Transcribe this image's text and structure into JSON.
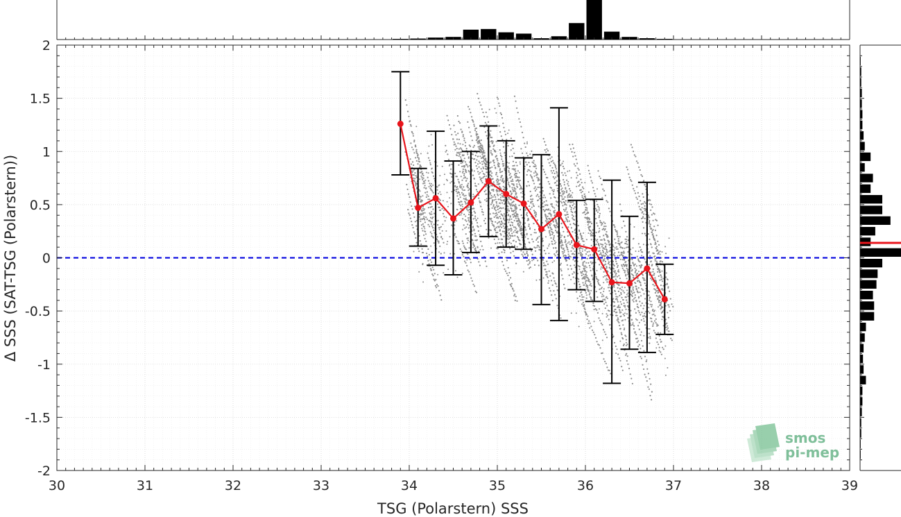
{
  "chart_data": {
    "type": "scatter",
    "xlabel": "TSG (Polarstern) SSS",
    "ylabel": "Δ SSS (SAT-TSG (Polarstern))",
    "xlim": [
      30,
      39
    ],
    "ylim": [
      -2,
      2
    ],
    "x_ticks": [
      30,
      31,
      32,
      33,
      34,
      35,
      36,
      37,
      38,
      39
    ],
    "y_ticks": [
      -2,
      -1.5,
      -1,
      -0.5,
      0,
      0.5,
      1,
      1.5,
      2
    ],
    "x_tick_labels": [
      "30",
      "31",
      "32",
      "33",
      "34",
      "35",
      "36",
      "37",
      "38",
      "39"
    ],
    "y_tick_labels": [
      "-2",
      "-1.5",
      "-1",
      "-0.5",
      "0",
      "0.5",
      "1",
      "1.5",
      "2"
    ],
    "grid": true,
    "reference_line": {
      "y": 0,
      "style": "dashed",
      "color": "#1010e0"
    },
    "binned_mean": {
      "color": "#e8141b",
      "x": [
        33.9,
        34.1,
        34.3,
        34.5,
        34.7,
        34.9,
        35.1,
        35.3,
        35.5,
        35.7,
        35.9,
        36.1,
        36.3,
        36.5,
        36.7,
        36.9
      ],
      "mean": [
        1.26,
        0.47,
        0.56,
        0.37,
        0.52,
        0.72,
        0.6,
        0.51,
        0.27,
        0.41,
        0.12,
        0.08,
        -0.23,
        -0.24,
        -0.1,
        -0.39
      ],
      "upper": [
        1.75,
        0.84,
        1.19,
        0.91,
        1.0,
        1.24,
        1.1,
        0.94,
        0.97,
        1.41,
        0.54,
        0.55,
        0.73,
        0.39,
        0.71,
        -0.06
      ],
      "lower": [
        0.78,
        0.11,
        -0.07,
        -0.16,
        0.05,
        0.2,
        0.1,
        0.08,
        -0.44,
        -0.59,
        -0.3,
        -0.41,
        -1.18,
        -0.86,
        -0.89,
        -0.72
      ]
    },
    "scatter_color": "#8c8c8c",
    "top_histogram": {
      "bin_centers": [
        33.9,
        34.1,
        34.3,
        34.5,
        34.7,
        34.9,
        35.1,
        35.3,
        35.5,
        35.7,
        35.9,
        36.1,
        36.3,
        36.5,
        36.7,
        36.9
      ],
      "counts": [
        1,
        1.5,
        3,
        4,
        15,
        16,
        11,
        9,
        2,
        5,
        25,
        60,
        12,
        4,
        2,
        1
      ]
    },
    "right_histogram": {
      "bin_centers": [
        1.85,
        1.75,
        1.65,
        1.55,
        1.45,
        1.35,
        1.25,
        1.15,
        1.05,
        0.95,
        0.85,
        0.75,
        0.65,
        0.55,
        0.45,
        0.35,
        0.25,
        0.15,
        0.05,
        -0.05,
        -0.15,
        -0.25,
        -0.35,
        -0.45,
        -0.55,
        -0.65,
        -0.75,
        -0.85,
        -0.95,
        -1.05,
        -1.15,
        -1.25,
        -1.35,
        -1.45,
        -1.55,
        -1.65,
        -1.75,
        -1.85
      ],
      "counts": [
        0.5,
        1,
        1,
        1.5,
        1.5,
        2,
        2,
        3,
        4,
        9,
        4,
        11,
        9,
        19,
        19,
        26,
        13,
        9,
        35,
        19,
        15,
        14,
        11,
        12,
        12,
        5,
        4,
        3,
        2.5,
        3,
        5,
        2,
        2,
        1.5,
        1,
        1,
        0.5,
        0.5
      ],
      "median_line_y": 0.14,
      "median_line_color": "#e8141b"
    }
  },
  "logo": {
    "line1": "smos",
    "line2": "pi-mep",
    "color": "#7fbf9a"
  }
}
